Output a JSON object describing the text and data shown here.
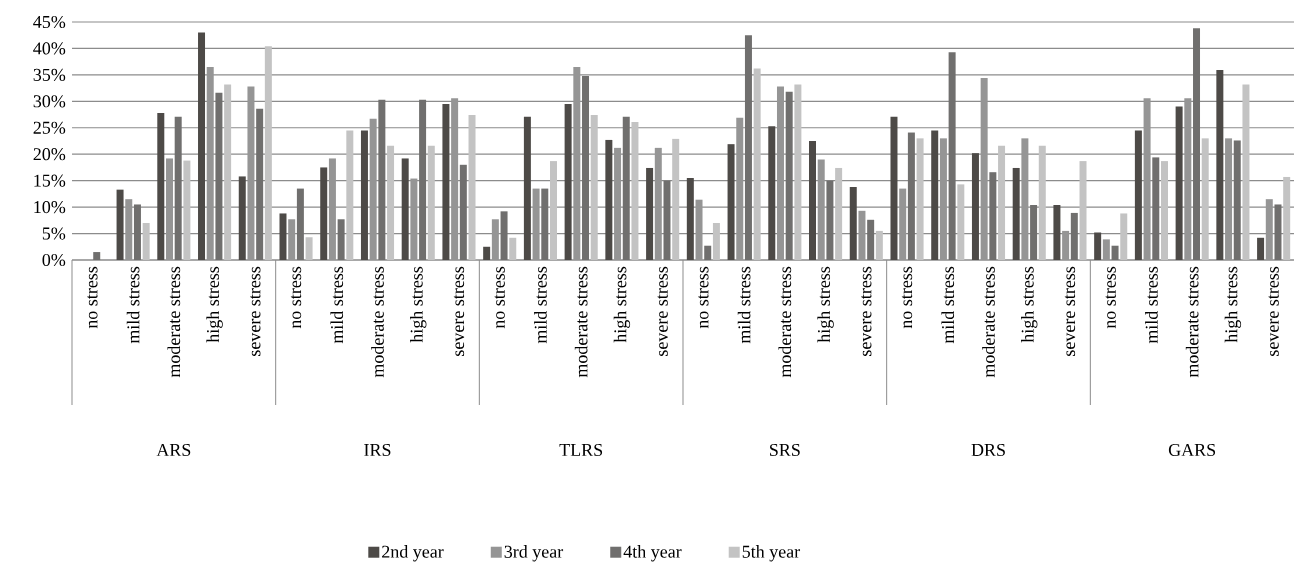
{
  "chart_data": {
    "type": "bar",
    "categories": [
      "no stress",
      "mild stress",
      "moderate stress",
      "high stress",
      "severe stress",
      "no stress",
      "mild stress",
      "moderate stress",
      "high stress",
      "severe stress",
      "no stress",
      "mild stress",
      "moderate stress",
      "high stress",
      "severe stress",
      "no stress",
      "mild stress",
      "moderate stress",
      "high stress",
      "severe stress",
      "no stress",
      "mild stress",
      "moderate stress",
      "high stress",
      "severe stress",
      "no stress",
      "mild stress",
      "moderate stress",
      "high stress",
      "severe stress"
    ],
    "annotations": [
      "ARS",
      "IRS",
      "TLRS",
      "SRS",
      "DRS",
      "GARS"
    ],
    "series": [
      {
        "name": "2nd year",
        "color": "#4d4a47",
        "values": [
          0,
          13.3,
          27.8,
          43.0,
          15.8,
          8.8,
          17.5,
          24.5,
          19.2,
          29.5,
          2.5,
          27.1,
          29.5,
          22.7,
          17.4,
          15.5,
          21.9,
          25.3,
          22.5,
          13.8,
          27.1,
          24.5,
          20.2,
          17.4,
          10.4,
          5.2,
          24.5,
          29.0,
          35.9,
          4.2
        ]
      },
      {
        "name": "3rd year",
        "color": "#959595",
        "values": [
          0,
          11.5,
          19.2,
          36.5,
          32.8,
          7.7,
          19.2,
          26.7,
          15.4,
          30.6,
          7.7,
          13.5,
          36.5,
          21.2,
          21.2,
          11.4,
          26.9,
          32.8,
          19.0,
          9.3,
          13.5,
          23.0,
          34.4,
          23.0,
          5.5,
          3.9,
          30.6,
          30.6,
          23.0,
          11.5
        ]
      },
      {
        "name": "4th year",
        "color": "#706f6e",
        "values": [
          1.5,
          10.5,
          27.1,
          31.6,
          28.6,
          13.5,
          7.7,
          30.3,
          30.3,
          18.0,
          9.2,
          13.5,
          34.8,
          27.1,
          15.0,
          2.7,
          42.5,
          31.8,
          15.0,
          7.6,
          24.1,
          39.3,
          16.6,
          10.4,
          8.9,
          2.7,
          19.4,
          43.8,
          22.6,
          10.5
        ]
      },
      {
        "name": "5th year",
        "color": "#c3c3c3",
        "values": [
          0,
          7.0,
          18.8,
          33.2,
          40.4,
          4.3,
          24.5,
          21.6,
          21.6,
          27.4,
          4.2,
          18.7,
          27.4,
          26.1,
          22.9,
          7.0,
          36.2,
          33.2,
          17.4,
          5.5,
          23.0,
          14.3,
          21.6,
          21.6,
          18.7,
          8.8,
          18.7,
          23.0,
          33.2,
          15.7
        ]
      }
    ],
    "ylim": [
      0,
      45
    ],
    "yticks": [
      {
        "value": 0,
        "label": "0%"
      },
      {
        "value": 5,
        "label": "5%"
      },
      {
        "value": 10,
        "label": "10%"
      },
      {
        "value": 15,
        "label": "15%"
      },
      {
        "value": 20,
        "label": "20%"
      },
      {
        "value": 25,
        "label": "25%"
      },
      {
        "value": 30,
        "label": "30%"
      },
      {
        "value": 35,
        "label": "35%"
      },
      {
        "value": 40,
        "label": "40%"
      },
      {
        "value": 45,
        "label": "45%"
      }
    ],
    "grid": "y",
    "legend": "bottom"
  }
}
